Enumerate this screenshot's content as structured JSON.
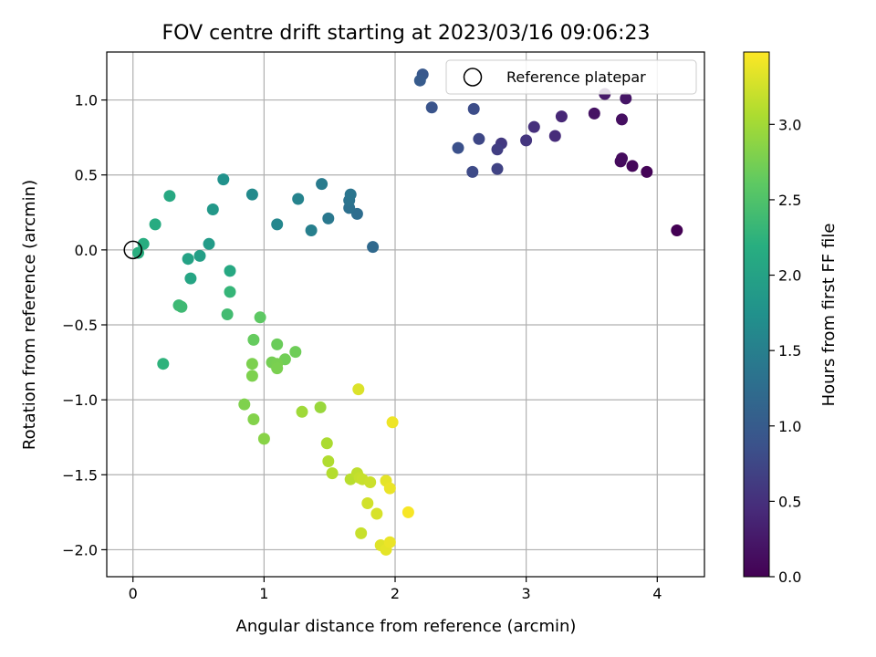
{
  "chart_data": {
    "type": "scatter",
    "title": "FOV centre drift starting at 2023/03/16 09:06:23",
    "xlabel": "Angular distance from reference (arcmin)",
    "ylabel": "Rotation from reference (arcmin)",
    "xlim": [
      -0.2,
      4.36
    ],
    "ylim": [
      -2.18,
      1.32
    ],
    "xticks": [
      0,
      1,
      2,
      3,
      4
    ],
    "xtick_labels": [
      "0",
      "1",
      "2",
      "3",
      "4"
    ],
    "yticks": [
      -2.0,
      -1.5,
      -1.0,
      -0.5,
      0.0,
      0.5,
      1.0
    ],
    "ytick_labels": [
      "−2.0",
      "−1.5",
      "−1.0",
      "−0.5",
      "0.0",
      "0.5",
      "1.0"
    ],
    "grid": true,
    "legend": {
      "position": "top-right",
      "entries": [
        "Reference platepar"
      ]
    },
    "reference_point": {
      "x": 0.0,
      "y": 0.0,
      "marker": "hollow-circle",
      "label": "Reference platepar"
    },
    "colorbar": {
      "label": "Hours from first FF file",
      "colormap": "viridis",
      "range": [
        0.0,
        3.48
      ],
      "ticks": [
        0.0,
        0.5,
        1.0,
        1.5,
        2.0,
        2.5,
        3.0
      ],
      "tick_labels": [
        "0.0",
        "0.5",
        "1.0",
        "1.5",
        "2.0",
        "2.5",
        "3.0"
      ]
    },
    "points": [
      {
        "x": 4.15,
        "y": 0.13,
        "t": 0.0
      },
      {
        "x": 3.92,
        "y": 0.52,
        "t": 0.03
      },
      {
        "x": 3.81,
        "y": 0.56,
        "t": 0.06
      },
      {
        "x": 3.72,
        "y": 0.59,
        "t": 0.09
      },
      {
        "x": 3.73,
        "y": 0.61,
        "t": 0.12
      },
      {
        "x": 3.73,
        "y": 0.87,
        "t": 0.15
      },
      {
        "x": 3.52,
        "y": 0.91,
        "t": 0.18
      },
      {
        "x": 3.76,
        "y": 1.01,
        "t": 0.21
      },
      {
        "x": 3.6,
        "y": 1.04,
        "t": 0.25
      },
      {
        "x": 3.27,
        "y": 0.89,
        "t": 0.4
      },
      {
        "x": 3.22,
        "y": 0.76,
        "t": 0.45
      },
      {
        "x": 3.06,
        "y": 0.82,
        "t": 0.5
      },
      {
        "x": 3.0,
        "y": 0.73,
        "t": 0.55
      },
      {
        "x": 2.81,
        "y": 0.71,
        "t": 0.6
      },
      {
        "x": 2.78,
        "y": 0.67,
        "t": 0.65
      },
      {
        "x": 2.78,
        "y": 0.54,
        "t": 0.7
      },
      {
        "x": 2.64,
        "y": 0.74,
        "t": 0.75
      },
      {
        "x": 2.59,
        "y": 0.52,
        "t": 0.78
      },
      {
        "x": 2.6,
        "y": 0.94,
        "t": 0.82
      },
      {
        "x": 2.48,
        "y": 0.68,
        "t": 0.86
      },
      {
        "x": 2.28,
        "y": 0.95,
        "t": 0.9
      },
      {
        "x": 2.21,
        "y": 1.17,
        "t": 0.95
      },
      {
        "x": 2.19,
        "y": 1.13,
        "t": 1.0
      },
      {
        "x": 1.83,
        "y": 0.02,
        "t": 1.2
      },
      {
        "x": 1.71,
        "y": 0.24,
        "t": 1.25
      },
      {
        "x": 1.65,
        "y": 0.28,
        "t": 1.3
      },
      {
        "x": 1.65,
        "y": 0.33,
        "t": 1.33
      },
      {
        "x": 1.66,
        "y": 0.37,
        "t": 1.36
      },
      {
        "x": 1.49,
        "y": 0.21,
        "t": 1.4
      },
      {
        "x": 1.44,
        "y": 0.44,
        "t": 1.45
      },
      {
        "x": 1.36,
        "y": 0.13,
        "t": 1.5
      },
      {
        "x": 1.26,
        "y": 0.34,
        "t": 1.55
      },
      {
        "x": 1.1,
        "y": 0.17,
        "t": 1.6
      },
      {
        "x": 0.91,
        "y": 0.37,
        "t": 1.65
      },
      {
        "x": 0.69,
        "y": 0.47,
        "t": 1.75
      },
      {
        "x": 0.61,
        "y": 0.27,
        "t": 1.85
      },
      {
        "x": 0.58,
        "y": 0.04,
        "t": 1.9
      },
      {
        "x": 0.51,
        "y": -0.04,
        "t": 1.95
      },
      {
        "x": 0.42,
        "y": -0.06,
        "t": 2.0
      },
      {
        "x": 0.44,
        "y": -0.19,
        "t": 2.05
      },
      {
        "x": 0.74,
        "y": -0.14,
        "t": 2.1
      },
      {
        "x": 0.28,
        "y": 0.36,
        "t": 2.1
      },
      {
        "x": 0.17,
        "y": 0.17,
        "t": 2.15
      },
      {
        "x": 0.08,
        "y": 0.04,
        "t": 2.18
      },
      {
        "x": 0.04,
        "y": -0.02,
        "t": 2.2
      },
      {
        "x": 0.23,
        "y": -0.76,
        "t": 2.25
      },
      {
        "x": 0.74,
        "y": -0.28,
        "t": 2.3
      },
      {
        "x": 0.35,
        "y": -0.37,
        "t": 2.35
      },
      {
        "x": 0.37,
        "y": -0.38,
        "t": 2.37
      },
      {
        "x": 0.72,
        "y": -0.43,
        "t": 2.4
      },
      {
        "x": 0.97,
        "y": -0.45,
        "t": 2.6
      },
      {
        "x": 0.92,
        "y": -0.6,
        "t": 2.65
      },
      {
        "x": 1.1,
        "y": -0.63,
        "t": 2.68
      },
      {
        "x": 1.24,
        "y": -0.68,
        "t": 2.7
      },
      {
        "x": 1.16,
        "y": -0.73,
        "t": 2.72
      },
      {
        "x": 1.06,
        "y": -0.75,
        "t": 2.74
      },
      {
        "x": 1.1,
        "y": -0.76,
        "t": 2.76
      },
      {
        "x": 1.1,
        "y": -0.79,
        "t": 2.77
      },
      {
        "x": 0.91,
        "y": -0.76,
        "t": 2.78
      },
      {
        "x": 0.91,
        "y": -0.84,
        "t": 2.79
      },
      {
        "x": 0.85,
        "y": -1.03,
        "t": 2.8
      },
      {
        "x": 0.92,
        "y": -1.13,
        "t": 2.82
      },
      {
        "x": 1.0,
        "y": -1.26,
        "t": 2.85
      },
      {
        "x": 1.43,
        "y": -1.05,
        "t": 2.95
      },
      {
        "x": 1.29,
        "y": -1.08,
        "t": 2.98
      },
      {
        "x": 1.48,
        "y": -1.29,
        "t": 3.05
      },
      {
        "x": 1.49,
        "y": -1.41,
        "t": 3.08
      },
      {
        "x": 1.52,
        "y": -1.49,
        "t": 3.1
      },
      {
        "x": 1.66,
        "y": -1.53,
        "t": 3.12
      },
      {
        "x": 1.71,
        "y": -1.49,
        "t": 3.15
      },
      {
        "x": 1.73,
        "y": -1.52,
        "t": 3.18
      },
      {
        "x": 1.75,
        "y": -1.53,
        "t": 3.2
      },
      {
        "x": 1.81,
        "y": -1.55,
        "t": 3.22
      },
      {
        "x": 1.79,
        "y": -1.69,
        "t": 3.25
      },
      {
        "x": 1.74,
        "y": -1.89,
        "t": 3.2
      },
      {
        "x": 1.86,
        "y": -1.76,
        "t": 3.28
      },
      {
        "x": 1.89,
        "y": -1.97,
        "t": 3.32
      },
      {
        "x": 1.93,
        "y": -2.0,
        "t": 3.35
      },
      {
        "x": 1.96,
        "y": -1.95,
        "t": 3.38
      },
      {
        "x": 1.93,
        "y": -1.54,
        "t": 3.35
      },
      {
        "x": 1.96,
        "y": -1.59,
        "t": 3.38
      },
      {
        "x": 1.72,
        "y": -0.93,
        "t": 3.3
      },
      {
        "x": 1.98,
        "y": -1.15,
        "t": 3.4
      },
      {
        "x": 2.1,
        "y": -1.75,
        "t": 3.45
      }
    ]
  }
}
